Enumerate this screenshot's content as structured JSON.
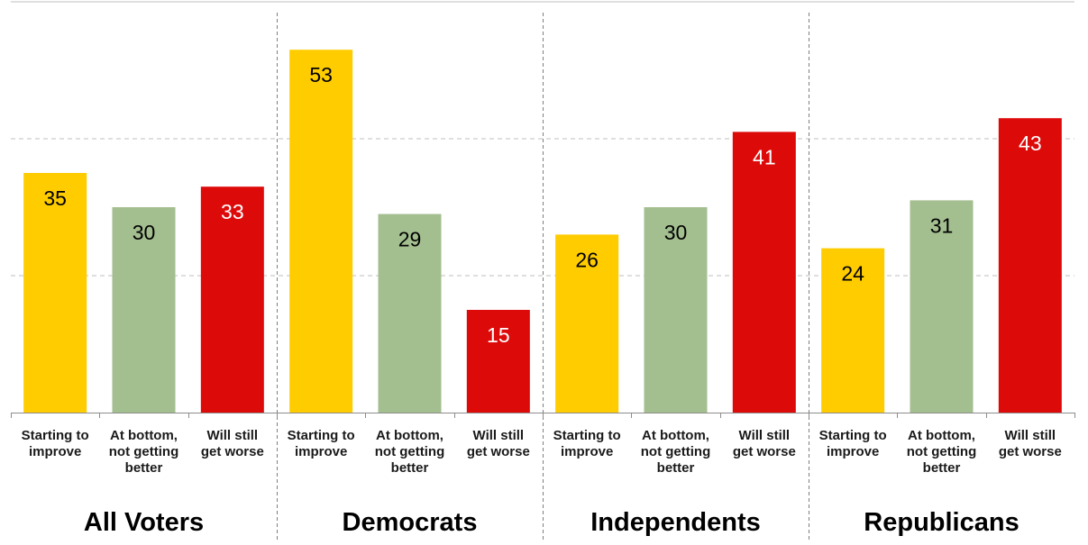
{
  "chart_data": {
    "type": "bar",
    "ylim": [
      0,
      60
    ],
    "grid": true,
    "legend": "none",
    "groups": [
      "All Voters",
      "Democrats",
      "Independents",
      "Republicans"
    ],
    "categories": [
      [
        "Starting to",
        "improve"
      ],
      [
        "At bottom,",
        "not getting",
        "better"
      ],
      [
        "Will still",
        "get worse"
      ]
    ],
    "colors": [
      "#ffcc00",
      "#a3be8f",
      "#dd0a0a"
    ],
    "value_label_colors": [
      "#000000",
      "#000000",
      "#ffffff"
    ],
    "values": [
      [
        35,
        30,
        33
      ],
      [
        53,
        29,
        15
      ],
      [
        26,
        30,
        41
      ],
      [
        24,
        31,
        43
      ]
    ]
  }
}
